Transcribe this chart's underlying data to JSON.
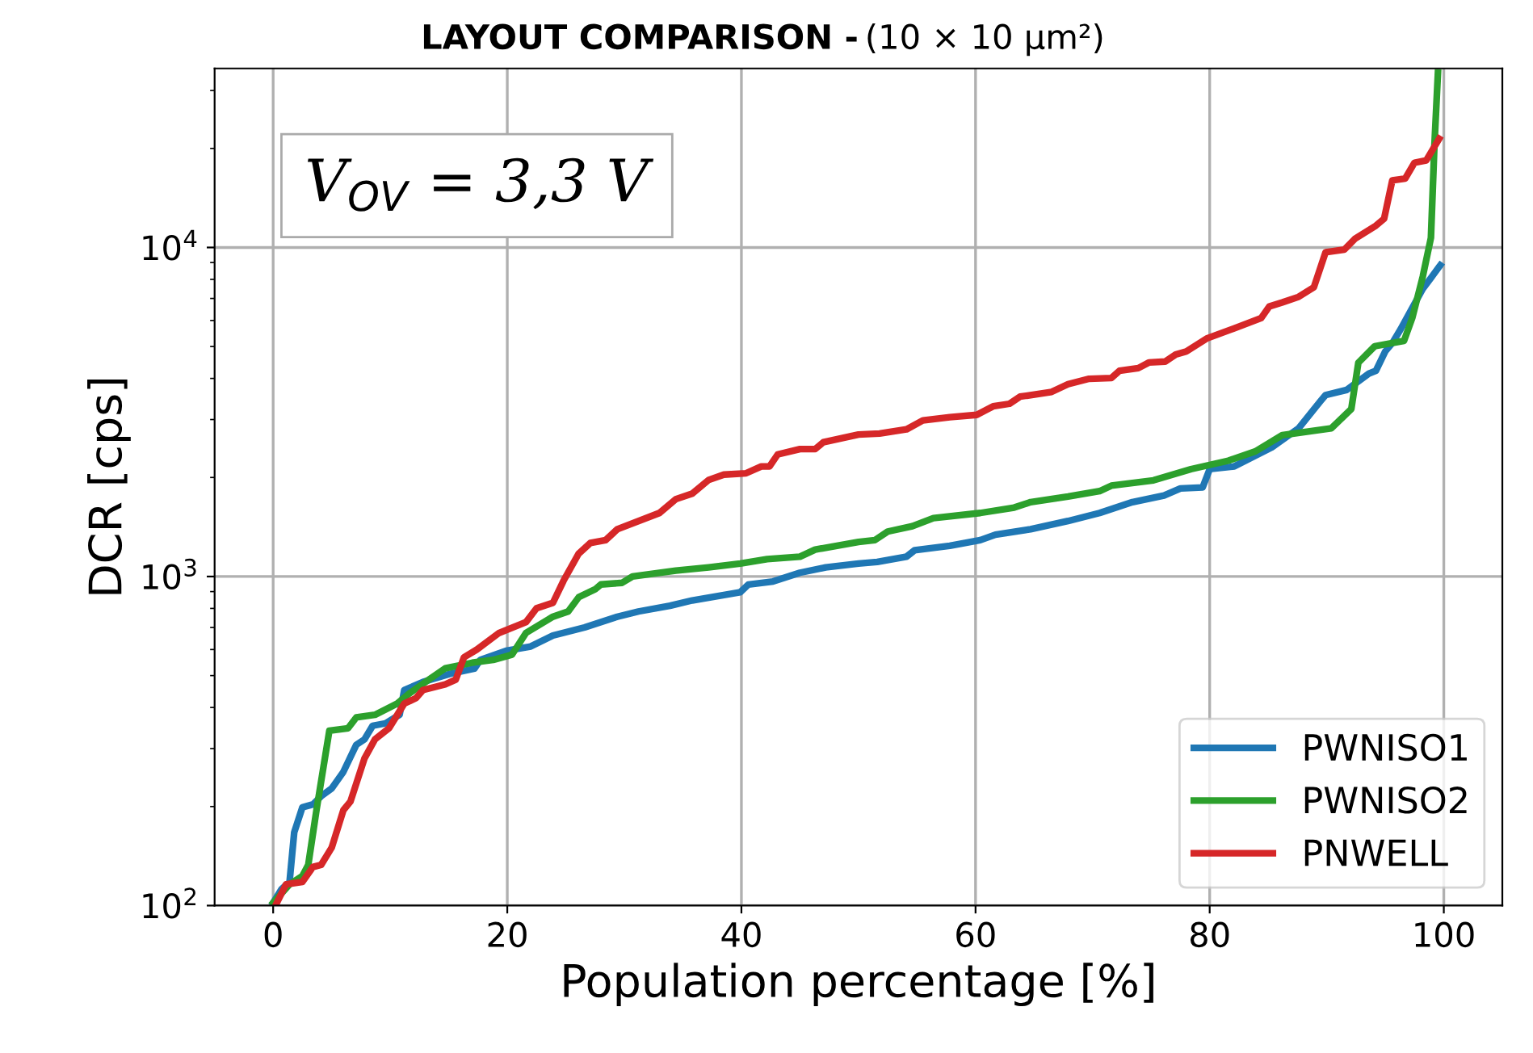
{
  "chart_data": {
    "type": "line",
    "title": "LAYOUT COMPARISON -",
    "subtitle": "(10 × 10 μm²)",
    "xlabel": "Population percentage [%]",
    "ylabel": "DCR [cps]",
    "annotations": [
      "V$_{OV}$ = 3,3 V"
    ],
    "xlim": [
      -5,
      105
    ],
    "xticks": [
      0,
      20,
      40,
      60,
      80,
      100
    ],
    "ylim": [
      100,
      35000
    ],
    "yticks": [
      {
        "value": 100,
        "label": "10$^{2}$"
      },
      {
        "value": 1000,
        "label": "10$^{3}$"
      },
      {
        "value": 10000,
        "label": "10$^{4}$"
      }
    ],
    "log": "y",
    "grid": true,
    "legend": "bottom right",
    "line_style": "solid",
    "marker": "none",
    "series": [
      {
        "name": "PWNISO1",
        "color": "#1f77b4",
        "x": [
          0,
          0.7,
          1.4,
          1.8,
          2.5,
          3.4,
          4.1,
          5.0,
          6.0,
          7.1,
          7.8,
          8.5,
          9.6,
          10.8,
          11.2,
          12.8,
          15.1,
          17.2,
          17.7,
          19.9,
          22,
          23.9,
          26.6,
          29.4,
          31.2,
          33.9,
          35.8,
          39.9,
          40.6,
          42.7,
          45,
          47.2,
          50,
          51.6,
          54.1,
          54.8,
          57.8,
          60.4,
          61.7,
          64.7,
          67.9,
          70.6,
          73.4,
          76.1,
          77.5,
          79.4,
          80,
          82.1,
          85.3,
          87.6,
          89.5,
          89.9,
          91.7,
          93.6,
          94.2,
          95,
          95.6,
          96.3,
          97.3,
          98.2,
          98.9,
          99.7
        ],
        "values": [
          102,
          112,
          118,
          167,
          199,
          203,
          215,
          227,
          255,
          308,
          320,
          352,
          358,
          380,
          452,
          478,
          506,
          525,
          558,
          595,
          613,
          662,
          700,
          755,
          783,
          815,
          846,
          896,
          946,
          966,
          1027,
          1066,
          1095,
          1107,
          1149,
          1202,
          1240,
          1290,
          1340,
          1392,
          1475,
          1560,
          1683,
          1763,
          1852,
          1866,
          2120,
          2161,
          2469,
          2823,
          3424,
          3560,
          3690,
          4137,
          4220,
          4833,
          5122,
          5634,
          6546,
          7480,
          8080,
          8830
        ]
      },
      {
        "name": "PWNISO2",
        "color": "#2ca02c",
        "x": [
          0,
          1.4,
          2.5,
          3,
          3.7,
          4.8,
          6.4,
          7.1,
          8.7,
          10.6,
          11.7,
          13.3,
          14.7,
          17,
          18.8,
          20.4,
          21.6,
          23.9,
          25.2,
          26.1,
          27.5,
          28,
          29.8,
          30.7,
          34.4,
          37.2,
          39.9,
          42.2,
          45,
          46.3,
          50,
          51.4,
          52.5,
          54.6,
          56.4,
          60.4,
          63.3,
          64.7,
          67.9,
          70.6,
          71.6,
          75.2,
          78.4,
          81.6,
          83.9,
          86.2,
          90.4,
          92.1,
          92.7,
          94.1,
          96.6,
          97.3,
          98.2,
          98.9,
          99.2,
          99.5
        ],
        "values": [
          102,
          116,
          123,
          133,
          195,
          340,
          346,
          373,
          380,
          411,
          443,
          486,
          526,
          547,
          558,
          579,
          674,
          755,
          783,
          865,
          914,
          946,
          957,
          1000,
          1042,
          1066,
          1095,
          1130,
          1149,
          1207,
          1274,
          1290,
          1370,
          1422,
          1505,
          1560,
          1620,
          1683,
          1750,
          1818,
          1888,
          1960,
          2120,
          2250,
          2400,
          2690,
          2823,
          3230,
          4467,
          5010,
          5200,
          6100,
          8150,
          10700,
          20500,
          34000
        ]
      },
      {
        "name": "PNWELL",
        "color": "#d62728",
        "x": [
          0.2,
          1.1,
          2.5,
          3.4,
          4.1,
          5,
          6,
          6.6,
          7.8,
          8.7,
          9.9,
          11.2,
          12.2,
          12.8,
          14.7,
          15.6,
          16.3,
          17.4,
          19.3,
          21.6,
          22.5,
          23.9,
          24.8,
          26.1,
          27.1,
          28.4,
          29.4,
          33,
          34.4,
          35.8,
          37.2,
          38.5,
          40.4,
          41.7,
          42.4,
          43.1,
          45,
          46.3,
          47,
          50,
          51.8,
          54.1,
          55.5,
          57.8,
          60.1,
          61.5,
          62.9,
          63.8,
          66.5,
          67.9,
          69.7,
          71.6,
          72.3,
          73.9,
          74.8,
          76.2,
          77.1,
          78,
          79.8,
          82.1,
          84.4,
          85.1,
          86.2,
          87.6,
          88.9,
          89.9,
          91.5,
          92.4,
          94.2,
          94.9,
          95.6,
          96.7,
          97.5,
          98.5,
          99.6
        ],
        "values": [
          100,
          116,
          118,
          131,
          133,
          150,
          195,
          207,
          280,
          320,
          346,
          411,
          427,
          452,
          470,
          486,
          568,
          600,
          674,
          727,
          801,
          832,
          970,
          1174,
          1265,
          1290,
          1392,
          1560,
          1719,
          1786,
          1965,
          2040,
          2060,
          2160,
          2160,
          2350,
          2440,
          2440,
          2560,
          2700,
          2720,
          2800,
          2980,
          3050,
          3100,
          3290,
          3350,
          3520,
          3640,
          3840,
          3990,
          4010,
          4220,
          4300,
          4470,
          4500,
          4730,
          4830,
          5300,
          5680,
          6100,
          6620,
          6810,
          7080,
          7570,
          9670,
          9850,
          10620,
          11650,
          12230,
          16000,
          16200,
          18100,
          18400,
          21400
        ]
      }
    ]
  }
}
